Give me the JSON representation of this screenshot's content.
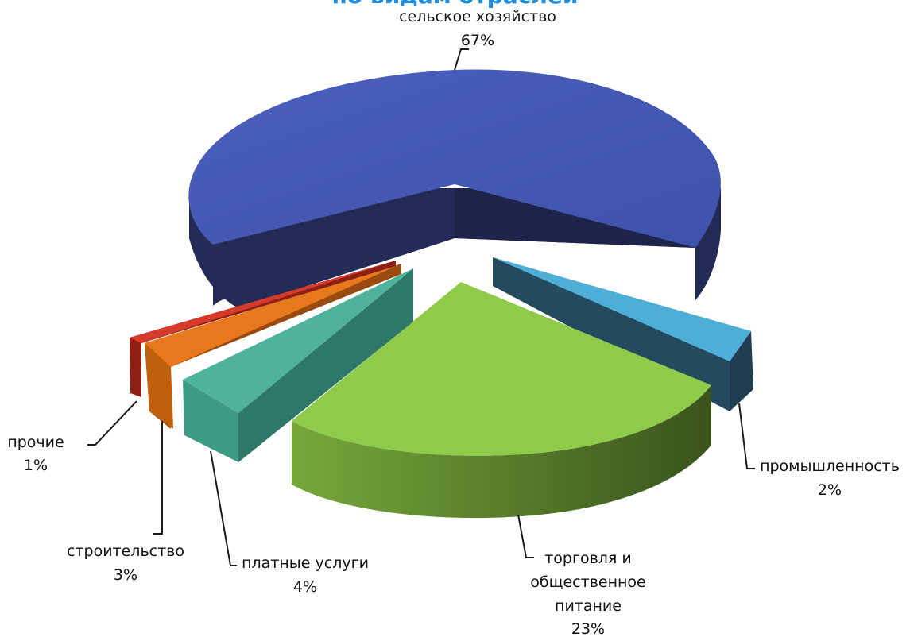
{
  "chart_data": {
    "type": "pie",
    "title": "по видам отраслей",
    "slices": [
      {
        "label": "сельское хозяйство",
        "value": 67,
        "value_label": "67%",
        "color": "#4558b0",
        "side_color": "#232a55"
      },
      {
        "label": "промышленность",
        "value": 2,
        "value_label": "2%",
        "color": "#4faed8",
        "side_color": "#244a5e"
      },
      {
        "label": "торговля и общественное питание",
        "label_lines": [
          "торговля и",
          "общественное",
          "питание"
        ],
        "value": 23,
        "value_label": "23%",
        "color": "#8fcb4a",
        "side_color": "#3e5f20"
      },
      {
        "label": "платные услуги",
        "value": 4,
        "value_label": "4%",
        "color": "#4fb29a",
        "side_color": "#2f7868"
      },
      {
        "label": "строительство",
        "value": 3,
        "value_label": "3%",
        "color": "#e8781c",
        "side_color": "#9a4a10"
      },
      {
        "label": "прочие",
        "value": 1,
        "value_label": "1%",
        "color": "#d63a2a",
        "side_color": "#8e1f14"
      }
    ],
    "legend": "none",
    "style": "3d-exploded"
  }
}
